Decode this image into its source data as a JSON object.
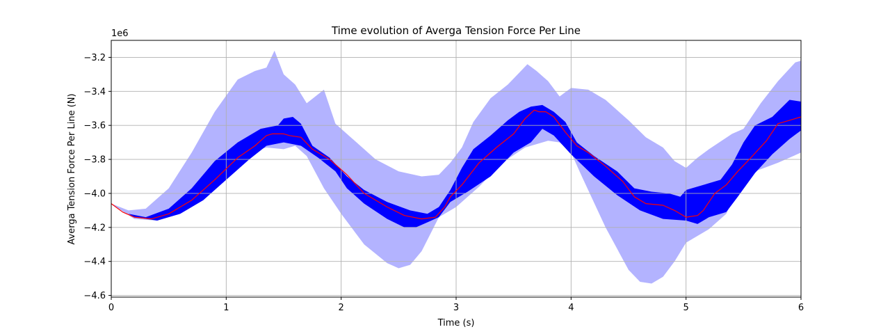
{
  "chart_data": {
    "type": "area",
    "title": "Time evolution of Averga Tension Force Per Line",
    "xlabel": "Time (s)",
    "ylabel": "Averga Tension Force Per Line (N)",
    "y_offset_label": "1e6",
    "xlim": [
      0,
      6
    ],
    "ylim": [
      -4.61,
      -3.1
    ],
    "x_ticks": [
      0,
      1,
      2,
      3,
      4,
      5,
      6
    ],
    "x_tick_labels": [
      "0",
      "1",
      "2",
      "3",
      "4",
      "5",
      "6"
    ],
    "y_ticks": [
      -4.6,
      -4.4,
      -4.2,
      -4.0,
      -3.8,
      -3.6,
      -3.4,
      -3.2
    ],
    "y_tick_labels": [
      "−4.6",
      "−4.4",
      "−4.2",
      "−4.0",
      "−3.8",
      "−3.6",
      "−3.4",
      "−3.2"
    ],
    "grid": true,
    "colors": {
      "outer_band": "#b3b3ff",
      "inner_band": "#0000ff",
      "mean_line": "#ff0000"
    },
    "series": [
      {
        "kind": "band",
        "color_key": "outer_band",
        "upper": [
          [
            0,
            -4.06
          ],
          [
            0.15,
            -4.1
          ],
          [
            0.3,
            -4.09
          ],
          [
            0.5,
            -3.97
          ],
          [
            0.7,
            -3.76
          ],
          [
            0.9,
            -3.52
          ],
          [
            1.1,
            -3.33
          ],
          [
            1.25,
            -3.28
          ],
          [
            1.35,
            -3.26
          ],
          [
            1.42,
            -3.16
          ],
          [
            1.5,
            -3.3
          ],
          [
            1.6,
            -3.36
          ],
          [
            1.7,
            -3.47
          ],
          [
            1.85,
            -3.39
          ],
          [
            1.95,
            -3.59
          ],
          [
            2.1,
            -3.68
          ],
          [
            2.3,
            -3.8
          ],
          [
            2.5,
            -3.87
          ],
          [
            2.7,
            -3.9
          ],
          [
            2.85,
            -3.89
          ],
          [
            2.95,
            -3.82
          ],
          [
            3.05,
            -3.73
          ],
          [
            3.15,
            -3.58
          ],
          [
            3.3,
            -3.44
          ],
          [
            3.45,
            -3.36
          ],
          [
            3.55,
            -3.29
          ],
          [
            3.62,
            -3.24
          ],
          [
            3.7,
            -3.28
          ],
          [
            3.8,
            -3.34
          ],
          [
            3.9,
            -3.43
          ],
          [
            4.0,
            -3.38
          ],
          [
            4.15,
            -3.39
          ],
          [
            4.3,
            -3.45
          ],
          [
            4.5,
            -3.57
          ],
          [
            4.65,
            -3.67
          ],
          [
            4.8,
            -3.73
          ],
          [
            4.9,
            -3.81
          ],
          [
            5.0,
            -3.85
          ],
          [
            5.1,
            -3.79
          ],
          [
            5.2,
            -3.74
          ],
          [
            5.4,
            -3.65
          ],
          [
            5.5,
            -3.62
          ],
          [
            5.65,
            -3.47
          ],
          [
            5.8,
            -3.34
          ],
          [
            5.95,
            -3.23
          ],
          [
            6.0,
            -3.22
          ]
        ],
        "lower": [
          [
            0,
            -4.06
          ],
          [
            0.2,
            -4.15
          ],
          [
            0.4,
            -4.16
          ],
          [
            0.6,
            -4.1
          ],
          [
            0.8,
            -3.98
          ],
          [
            1.0,
            -3.85
          ],
          [
            1.2,
            -3.76
          ],
          [
            1.35,
            -3.73
          ],
          [
            1.5,
            -3.74
          ],
          [
            1.6,
            -3.72
          ],
          [
            1.7,
            -3.78
          ],
          [
            1.85,
            -3.97
          ],
          [
            2.0,
            -4.12
          ],
          [
            2.2,
            -4.3
          ],
          [
            2.4,
            -4.41
          ],
          [
            2.5,
            -4.44
          ],
          [
            2.6,
            -4.42
          ],
          [
            2.7,
            -4.34
          ],
          [
            2.85,
            -4.14
          ],
          [
            3.0,
            -4.08
          ],
          [
            3.2,
            -3.96
          ],
          [
            3.4,
            -3.82
          ],
          [
            3.6,
            -3.73
          ],
          [
            3.8,
            -3.69
          ],
          [
            3.9,
            -3.7
          ],
          [
            4.0,
            -3.76
          ],
          [
            4.1,
            -3.91
          ],
          [
            4.3,
            -4.2
          ],
          [
            4.5,
            -4.45
          ],
          [
            4.6,
            -4.52
          ],
          [
            4.7,
            -4.53
          ],
          [
            4.8,
            -4.49
          ],
          [
            4.9,
            -4.4
          ],
          [
            5.0,
            -4.29
          ],
          [
            5.1,
            -4.25
          ],
          [
            5.2,
            -4.21
          ],
          [
            5.35,
            -4.12
          ],
          [
            5.45,
            -3.98
          ],
          [
            5.5,
            -3.92
          ],
          [
            5.6,
            -3.87
          ],
          [
            5.8,
            -3.82
          ],
          [
            6.0,
            -3.76
          ]
        ]
      },
      {
        "kind": "band",
        "color_key": "inner_band",
        "upper": [
          [
            0,
            -4.06
          ],
          [
            0.15,
            -4.12
          ],
          [
            0.3,
            -4.14
          ],
          [
            0.5,
            -4.09
          ],
          [
            0.7,
            -3.97
          ],
          [
            0.9,
            -3.81
          ],
          [
            1.1,
            -3.7
          ],
          [
            1.3,
            -3.62
          ],
          [
            1.45,
            -3.6
          ],
          [
            1.5,
            -3.56
          ],
          [
            1.58,
            -3.55
          ],
          [
            1.65,
            -3.59
          ],
          [
            1.75,
            -3.72
          ],
          [
            1.9,
            -3.79
          ],
          [
            2.05,
            -3.9
          ],
          [
            2.2,
            -3.98
          ],
          [
            2.4,
            -4.05
          ],
          [
            2.6,
            -4.1
          ],
          [
            2.75,
            -4.12
          ],
          [
            2.85,
            -4.08
          ],
          [
            2.95,
            -3.98
          ],
          [
            3.05,
            -3.85
          ],
          [
            3.15,
            -3.74
          ],
          [
            3.3,
            -3.66
          ],
          [
            3.45,
            -3.57
          ],
          [
            3.55,
            -3.52
          ],
          [
            3.65,
            -3.49
          ],
          [
            3.75,
            -3.48
          ],
          [
            3.85,
            -3.52
          ],
          [
            3.95,
            -3.58
          ],
          [
            4.05,
            -3.7
          ],
          [
            4.2,
            -3.78
          ],
          [
            4.4,
            -3.87
          ],
          [
            4.55,
            -3.97
          ],
          [
            4.7,
            -3.99
          ],
          [
            4.85,
            -4.0
          ],
          [
            4.95,
            -4.02
          ],
          [
            5.0,
            -3.98
          ],
          [
            5.15,
            -3.95
          ],
          [
            5.3,
            -3.92
          ],
          [
            5.4,
            -3.83
          ],
          [
            5.5,
            -3.7
          ],
          [
            5.6,
            -3.6
          ],
          [
            5.75,
            -3.55
          ],
          [
            5.9,
            -3.45
          ],
          [
            6.0,
            -3.46
          ]
        ],
        "lower": [
          [
            0,
            -4.06
          ],
          [
            0.2,
            -4.14
          ],
          [
            0.4,
            -4.16
          ],
          [
            0.6,
            -4.12
          ],
          [
            0.8,
            -4.04
          ],
          [
            1.0,
            -3.92
          ],
          [
            1.2,
            -3.8
          ],
          [
            1.35,
            -3.72
          ],
          [
            1.5,
            -3.7
          ],
          [
            1.65,
            -3.72
          ],
          [
            1.8,
            -3.79
          ],
          [
            1.95,
            -3.87
          ],
          [
            2.05,
            -3.97
          ],
          [
            2.2,
            -4.06
          ],
          [
            2.4,
            -4.15
          ],
          [
            2.55,
            -4.2
          ],
          [
            2.65,
            -4.2
          ],
          [
            2.75,
            -4.17
          ],
          [
            2.85,
            -4.14
          ],
          [
            2.95,
            -4.05
          ],
          [
            3.1,
            -3.99
          ],
          [
            3.3,
            -3.9
          ],
          [
            3.5,
            -3.76
          ],
          [
            3.65,
            -3.7
          ],
          [
            3.75,
            -3.62
          ],
          [
            3.85,
            -3.66
          ],
          [
            4.0,
            -3.77
          ],
          [
            4.2,
            -3.9
          ],
          [
            4.4,
            -4.01
          ],
          [
            4.6,
            -4.1
          ],
          [
            4.8,
            -4.15
          ],
          [
            5.0,
            -4.16
          ],
          [
            5.1,
            -4.18
          ],
          [
            5.2,
            -4.14
          ],
          [
            5.35,
            -4.11
          ],
          [
            5.45,
            -4.02
          ],
          [
            5.6,
            -3.88
          ],
          [
            5.75,
            -3.77
          ],
          [
            5.9,
            -3.68
          ],
          [
            6.0,
            -3.63
          ]
        ]
      },
      {
        "kind": "line",
        "color_key": "mean_line",
        "points": [
          [
            0,
            -4.06
          ],
          [
            0.1,
            -4.11
          ],
          [
            0.2,
            -4.14
          ],
          [
            0.35,
            -4.15
          ],
          [
            0.5,
            -4.12
          ],
          [
            0.7,
            -4.04
          ],
          [
            0.9,
            -3.92
          ],
          [
            1.1,
            -3.79
          ],
          [
            1.25,
            -3.72
          ],
          [
            1.35,
            -3.66
          ],
          [
            1.4,
            -3.65
          ],
          [
            1.5,
            -3.65
          ],
          [
            1.55,
            -3.66
          ],
          [
            1.65,
            -3.67
          ],
          [
            1.75,
            -3.74
          ],
          [
            1.9,
            -3.8
          ],
          [
            2.05,
            -3.89
          ],
          [
            2.2,
            -4.0
          ],
          [
            2.4,
            -4.08
          ],
          [
            2.55,
            -4.13
          ],
          [
            2.7,
            -4.15
          ],
          [
            2.82,
            -4.14
          ],
          [
            2.9,
            -4.08
          ],
          [
            2.95,
            -4.02
          ],
          [
            3.05,
            -3.95
          ],
          [
            3.2,
            -3.82
          ],
          [
            3.35,
            -3.73
          ],
          [
            3.5,
            -3.65
          ],
          [
            3.6,
            -3.56
          ],
          [
            3.68,
            -3.51
          ],
          [
            3.72,
            -3.52
          ],
          [
            3.78,
            -3.52
          ],
          [
            3.85,
            -3.55
          ],
          [
            3.95,
            -3.64
          ],
          [
            4.05,
            -3.72
          ],
          [
            4.15,
            -3.76
          ],
          [
            4.3,
            -3.84
          ],
          [
            4.45,
            -3.93
          ],
          [
            4.55,
            -4.02
          ],
          [
            4.65,
            -4.06
          ],
          [
            4.8,
            -4.07
          ],
          [
            4.9,
            -4.1
          ],
          [
            5.0,
            -4.14
          ],
          [
            5.1,
            -4.13
          ],
          [
            5.15,
            -4.1
          ],
          [
            5.25,
            -4.0
          ],
          [
            5.35,
            -3.95
          ],
          [
            5.45,
            -3.87
          ],
          [
            5.55,
            -3.8
          ],
          [
            5.7,
            -3.69
          ],
          [
            5.8,
            -3.59
          ],
          [
            5.9,
            -3.57
          ],
          [
            6.0,
            -3.55
          ]
        ]
      }
    ]
  }
}
